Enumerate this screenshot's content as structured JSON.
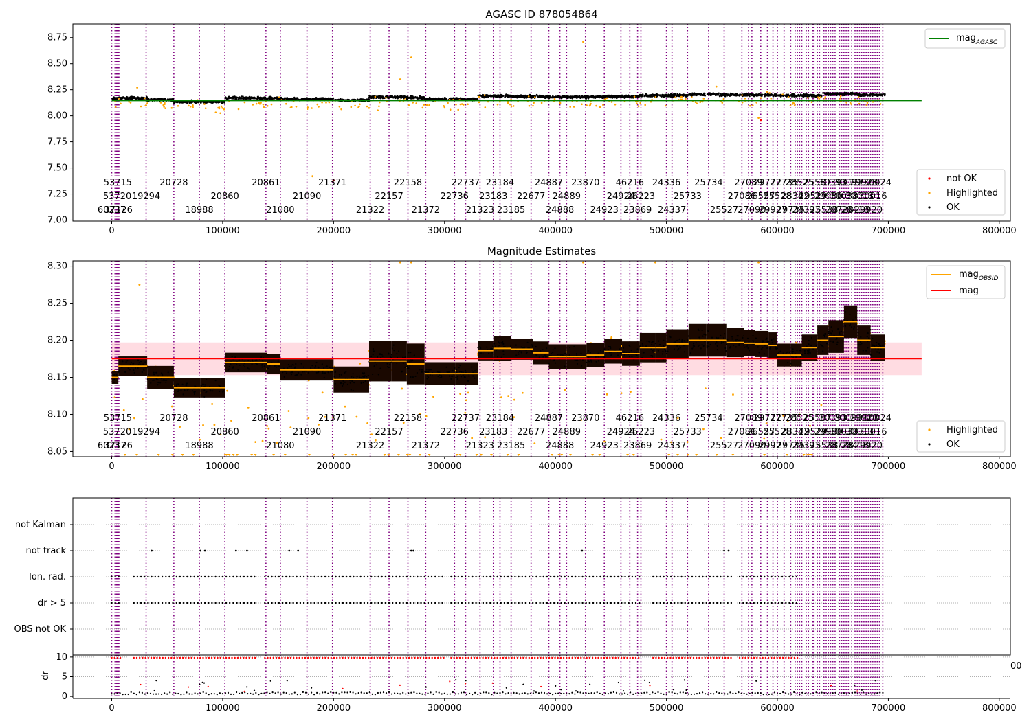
{
  "chart_data": [
    {
      "type": "scatter",
      "title": "AGASC ID 878054864",
      "xlim": [
        -35000,
        810000
      ],
      "ylim": [
        6.99,
        8.88
      ],
      "xticks": [
        0,
        100000,
        200000,
        300000,
        400000,
        500000,
        600000,
        700000,
        800000
      ],
      "xtick_labels": [
        "0",
        "100000",
        "200000",
        "300000",
        "400000",
        "500000",
        "600000",
        "700000",
        "800000"
      ],
      "yticks": [
        7.0,
        7.25,
        7.5,
        7.75,
        8.0,
        8.25,
        8.5,
        8.75
      ],
      "ytick_labels": [
        "7.00",
        "7.25",
        "7.50",
        "7.75",
        "8.00",
        "8.25",
        "8.50",
        "8.75"
      ],
      "grid": false,
      "legend_upper": {
        "placement": "upper right",
        "entries": [
          {
            "label": "mag",
            "subscript": "AGASC",
            "color": "#008000",
            "marker": "line"
          }
        ]
      },
      "legend_lower": {
        "placement": "lower right",
        "entries": [
          {
            "label": "not OK",
            "color": "#ff0000",
            "marker": "point"
          },
          {
            "label": "Highlighted",
            "color": "#ffa500",
            "marker": "point"
          },
          {
            "label": "OK",
            "color": "#000000",
            "marker": "point"
          }
        ]
      },
      "mag_agasc": 8.145,
      "obs_segments": [
        [
          0,
          6000,
          8.165
        ],
        [
          6000,
          32000,
          8.17
        ],
        [
          32000,
          56000,
          8.155
        ],
        [
          56000,
          102000,
          8.135
        ],
        [
          102000,
          140000,
          8.17
        ],
        [
          140000,
          152000,
          8.17
        ],
        [
          152000,
          176000,
          8.16
        ],
        [
          176000,
          200000,
          8.16
        ],
        [
          200000,
          232000,
          8.15
        ],
        [
          232000,
          266000,
          8.18
        ],
        [
          266000,
          282000,
          8.175
        ],
        [
          282000,
          310000,
          8.16
        ],
        [
          310000,
          330000,
          8.16
        ],
        [
          330000,
          360000,
          8.19
        ],
        [
          360000,
          394000,
          8.185
        ],
        [
          394000,
          444000,
          8.18
        ],
        [
          444000,
          476000,
          8.185
        ],
        [
          476000,
          520000,
          8.195
        ],
        [
          520000,
          548000,
          8.205
        ],
        [
          548000,
          600000,
          8.2
        ],
        [
          600000,
          640000,
          8.195
        ],
        [
          640000,
          672000,
          8.21
        ],
        [
          672000,
          697000,
          8.2
        ]
      ],
      "scatter_density": "about 4 points per 1000 x units along each segment"
    },
    {
      "type": "scatter",
      "title": "Magnitude Estimates",
      "xlim": [
        -35000,
        810000
      ],
      "ylim": [
        8.043,
        8.307
      ],
      "xticks": [
        0,
        100000,
        200000,
        300000,
        400000,
        500000,
        600000,
        700000,
        800000
      ],
      "xtick_labels": [
        "0",
        "100000",
        "200000",
        "300000",
        "400000",
        "500000",
        "600000",
        "700000",
        "800000"
      ],
      "yticks": [
        8.05,
        8.1,
        8.15,
        8.2,
        8.25,
        8.3
      ],
      "ytick_labels": [
        "8.05",
        "8.10",
        "8.15",
        "8.20",
        "8.25",
        "8.30"
      ],
      "grid": false,
      "legend_upper": {
        "placement": "upper right",
        "entries": [
          {
            "label": "mag",
            "subscript": "OBSID",
            "color": "#ffa500",
            "marker": "line"
          },
          {
            "label": "mag",
            "subscript": "",
            "color": "#ff0000",
            "marker": "line"
          }
        ]
      },
      "legend_lower": {
        "placement": "lower right",
        "entries": [
          {
            "label": "Highlighted",
            "color": "#ffa500",
            "marker": "point"
          },
          {
            "label": "OK",
            "color": "#000000",
            "marker": "point"
          }
        ]
      },
      "mag": 8.175,
      "mag_band": [
        8.153,
        8.197
      ],
      "obs_segments": [
        [
          0,
          6000,
          8.15,
          0.008
        ],
        [
          6000,
          32000,
          8.165,
          0.012
        ],
        [
          32000,
          56000,
          8.15,
          0.014
        ],
        [
          56000,
          80000,
          8.136,
          0.012
        ],
        [
          80000,
          102000,
          8.136,
          0.012
        ],
        [
          102000,
          140000,
          8.17,
          0.012
        ],
        [
          140000,
          152000,
          8.168,
          0.012
        ],
        [
          152000,
          176000,
          8.16,
          0.013
        ],
        [
          176000,
          200000,
          8.16,
          0.013
        ],
        [
          200000,
          232000,
          8.147,
          0.016
        ],
        [
          232000,
          252000,
          8.172,
          0.025
        ],
        [
          252000,
          266000,
          8.172,
          0.025
        ],
        [
          266000,
          282000,
          8.168,
          0.025
        ],
        [
          282000,
          310000,
          8.155,
          0.014
        ],
        [
          310000,
          330000,
          8.155,
          0.014
        ],
        [
          330000,
          344000,
          8.186,
          0.012
        ],
        [
          344000,
          360000,
          8.189,
          0.015
        ],
        [
          360000,
          380000,
          8.188,
          0.013
        ],
        [
          380000,
          394000,
          8.183,
          0.014
        ],
        [
          394000,
          410000,
          8.178,
          0.015
        ],
        [
          410000,
          428000,
          8.178,
          0.015
        ],
        [
          428000,
          444000,
          8.18,
          0.015
        ],
        [
          444000,
          460000,
          8.185,
          0.015
        ],
        [
          460000,
          476000,
          8.182,
          0.015
        ],
        [
          476000,
          490000,
          8.19,
          0.018
        ],
        [
          490000,
          500000,
          8.19,
          0.018
        ],
        [
          500000,
          520000,
          8.195,
          0.018
        ],
        [
          520000,
          536000,
          8.2,
          0.02
        ],
        [
          536000,
          554000,
          8.2,
          0.02
        ],
        [
          554000,
          570000,
          8.197,
          0.018
        ],
        [
          570000,
          580000,
          8.196,
          0.016
        ],
        [
          580000,
          592000,
          8.195,
          0.016
        ],
        [
          592000,
          600000,
          8.193,
          0.016
        ],
        [
          600000,
          612000,
          8.18,
          0.014
        ],
        [
          612000,
          622000,
          8.18,
          0.014
        ],
        [
          622000,
          636000,
          8.19,
          0.016
        ],
        [
          636000,
          646000,
          8.2,
          0.018
        ],
        [
          646000,
          660000,
          8.205,
          0.02
        ],
        [
          660000,
          672000,
          8.225,
          0.02
        ],
        [
          672000,
          684000,
          8.2,
          0.018
        ],
        [
          684000,
          697000,
          8.19,
          0.016
        ]
      ]
    },
    {
      "type": "scatter",
      "title": "",
      "xlim": [
        -35000,
        810000
      ],
      "categories": [
        "not Kalman",
        "not track",
        "Ion. rad.",
        "dr > 5",
        "OBS not OK"
      ],
      "rows": [
        {
          "label": "not Kalman",
          "marker": "vertical lines only"
        },
        {
          "label": "not track",
          "x_points": [
            36000,
            80000,
            84000,
            112000,
            122000,
            160000,
            168000,
            270000,
            272000,
            424000,
            552000,
            556000
          ]
        },
        {
          "label": "Ion. rad.",
          "ranges": [
            [
              0,
              8000
            ],
            [
              20000,
              130000
            ],
            [
              138000,
              300000
            ],
            [
              306000,
              476000
            ],
            [
              488000,
              560000
            ],
            [
              566000,
              620000
            ]
          ]
        },
        {
          "label": "dr > 5",
          "ranges": [
            [
              0,
              8000
            ],
            [
              20000,
              130000
            ],
            [
              138000,
              300000
            ],
            [
              306000,
              476000
            ],
            [
              488000,
              560000
            ],
            [
              566000,
              620000
            ]
          ]
        },
        {
          "label": "OBS not OK",
          "marker": "none"
        }
      ],
      "grid": "horizontal dotted"
    },
    {
      "type": "scatter",
      "title": "",
      "ylabel": "dr",
      "xlim": [
        -35000,
        810000
      ],
      "ylim": [
        -0.5,
        10.5
      ],
      "yticks": [
        0,
        5,
        10
      ],
      "ytick_labels": [
        "0",
        "5",
        "10"
      ],
      "xticks": [
        0,
        100000,
        200000,
        300000,
        400000,
        500000,
        600000,
        700000,
        800000
      ],
      "xtick_labels": [
        "0",
        "100000",
        "200000",
        "300000",
        "400000",
        "500000",
        "600000",
        "700000",
        "800000"
      ],
      "clipped_tick_label": "00",
      "red_band_ranges": [
        [
          0,
          8000
        ],
        [
          20000,
          130000
        ],
        [
          138000,
          300000
        ],
        [
          306000,
          476000
        ],
        [
          488000,
          560000
        ],
        [
          566000,
          620000
        ]
      ],
      "red_band_value": 9.8,
      "black_baseline": 0.5,
      "grid": "horizontal dotted"
    }
  ],
  "obsids": [
    {
      "x": 0,
      "label": "60237",
      "row": 2
    },
    {
      "x": 5000,
      "label": "53720",
      "row": 1
    },
    {
      "x": 5500,
      "label": "53715",
      "row": 0
    },
    {
      "x": 6000,
      "label": "37126",
      "row": 2
    },
    {
      "x": 31000,
      "label": "19294",
      "row": 1
    },
    {
      "x": 56000,
      "label": "20728",
      "row": 0
    },
    {
      "x": 79000,
      "label": "18988",
      "row": 2
    },
    {
      "x": 102000,
      "label": "20860",
      "row": 1
    },
    {
      "x": 139000,
      "label": "20861",
      "row": 0
    },
    {
      "x": 152000,
      "label": "21080",
      "row": 2
    },
    {
      "x": 176000,
      "label": "21090",
      "row": 1
    },
    {
      "x": 199000,
      "label": "21371",
      "row": 0
    },
    {
      "x": 233000,
      "label": "21322",
      "row": 2
    },
    {
      "x": 250000,
      "label": "22157",
      "row": 1
    },
    {
      "x": 267000,
      "label": "22158",
      "row": 0
    },
    {
      "x": 283000,
      "label": "21372",
      "row": 2
    },
    {
      "x": 309000,
      "label": "22736",
      "row": 1
    },
    {
      "x": 319000,
      "label": "22737",
      "row": 0
    },
    {
      "x": 332000,
      "label": "21323",
      "row": 2
    },
    {
      "x": 344000,
      "label": "23183",
      "row": 1
    },
    {
      "x": 350000,
      "label": "23184",
      "row": 0
    },
    {
      "x": 360000,
      "label": "23185",
      "row": 2
    },
    {
      "x": 378000,
      "label": "22677",
      "row": 1
    },
    {
      "x": 394000,
      "label": "24887",
      "row": 0
    },
    {
      "x": 404000,
      "label": "24888",
      "row": 2
    },
    {
      "x": 410000,
      "label": "24889",
      "row": 1
    },
    {
      "x": 427000,
      "label": "23870",
      "row": 0
    },
    {
      "x": 444000,
      "label": "24923",
      "row": 2
    },
    {
      "x": 459000,
      "label": "24924",
      "row": 1
    },
    {
      "x": 467000,
      "label": "46216",
      "row": 0
    },
    {
      "x": 474000,
      "label": "23869",
      "row": 2
    },
    {
      "x": 477000,
      "label": "26223",
      "row": 1
    },
    {
      "x": 500000,
      "label": "24336",
      "row": 0
    },
    {
      "x": 505000,
      "label": "24337",
      "row": 2
    },
    {
      "x": 519000,
      "label": "25733",
      "row": 1
    },
    {
      "x": 538000,
      "label": "25734",
      "row": 0
    },
    {
      "x": 552000,
      "label": "25527",
      "row": 2
    },
    {
      "x": 568000,
      "label": "27086",
      "row": 1
    },
    {
      "x": 574000,
      "label": "27089",
      "row": 0
    },
    {
      "x": 577000,
      "label": "27090",
      "row": 2
    },
    {
      "x": 585000,
      "label": "26557",
      "row": 1
    },
    {
      "x": 591000,
      "label": "29772",
      "row": 0
    },
    {
      "x": 596000,
      "label": "29927",
      "row": 2
    },
    {
      "x": 600000,
      "label": "25528",
      "row": 1
    },
    {
      "x": 606000,
      "label": "27735",
      "row": 0
    },
    {
      "x": 612000,
      "label": "29735",
      "row": 2
    },
    {
      "x": 616000,
      "label": "28342",
      "row": 1
    },
    {
      "x": 620000,
      "label": "28525",
      "row": 0
    },
    {
      "x": 626000,
      "label": "29393",
      "row": 2
    },
    {
      "x": 632000,
      "label": "29529",
      "row": 1
    },
    {
      "x": 636000,
      "label": "25587",
      "row": 0
    },
    {
      "x": 642000,
      "label": "25538",
      "row": 2
    },
    {
      "x": 646000,
      "label": "29980",
      "row": 1
    },
    {
      "x": 650000,
      "label": "30393",
      "row": 0
    },
    {
      "x": 656000,
      "label": "28728",
      "row": 2
    },
    {
      "x": 660000,
      "label": "30038",
      "row": 1
    },
    {
      "x": 664000,
      "label": "30090",
      "row": 0
    },
    {
      "x": 670000,
      "label": "28418",
      "row": 2
    },
    {
      "x": 674000,
      "label": "30013",
      "row": 1
    },
    {
      "x": 678000,
      "label": "29923",
      "row": 0
    },
    {
      "x": 682000,
      "label": "29920",
      "row": 2
    },
    {
      "x": 686000,
      "label": "30016",
      "row": 1
    },
    {
      "x": 690000,
      "label": "30024",
      "row": 0
    }
  ],
  "extra_vlines": [
    3000,
    4000,
    4500,
    5000,
    6000,
    6500,
    618000,
    622000,
    628000,
    633000,
    638000,
    644000,
    648000,
    652000,
    658000,
    662000,
    667000,
    672000,
    676000,
    680000,
    684000,
    688000,
    692000,
    695000
  ],
  "colors": {
    "ok": "#000000",
    "highlighted": "#ffa500",
    "not_ok": "#ff0000",
    "agasc_line": "#008000",
    "mag_line": "#ff0000",
    "mag_band": "#ffc0cb",
    "obsid_line": "#ffa500",
    "vline": "#800080"
  }
}
